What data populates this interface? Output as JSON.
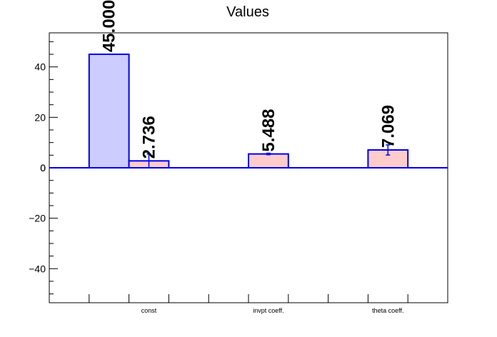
{
  "chart_data": {
    "type": "bar",
    "title": "Values",
    "xlabel": "",
    "ylabel": "",
    "categories": [
      "const",
      "invpt coeff.",
      "theta coeff."
    ],
    "ylim": [
      -53.5,
      53.5
    ],
    "yticks": [
      -40,
      -20,
      0,
      20,
      40
    ],
    "grid": false,
    "legend": "none",
    "series": [
      {
        "bars": [
          {
            "category": "const",
            "slot": 0,
            "value": 45.0,
            "error": 0,
            "label": "45.000",
            "fill": "#ccccff"
          },
          {
            "category": "const",
            "slot": 1,
            "value": 2.736,
            "error": 2.736,
            "label": "2.736",
            "fill": "#ffcccc"
          },
          {
            "category": "invpt coeff.",
            "slot": 1,
            "value": 5.488,
            "error": 0.3,
            "label": "5.488",
            "fill": "#ffcccc"
          },
          {
            "category": "theta coeff.",
            "slot": 1,
            "value": 7.069,
            "error": 2.0,
            "label": "7.069",
            "fill": "#ffcccc"
          }
        ]
      }
    ],
    "colors": {
      "bar_stroke": "#0000ee",
      "axis": "#000000",
      "zero_line": "#0000ee"
    }
  }
}
